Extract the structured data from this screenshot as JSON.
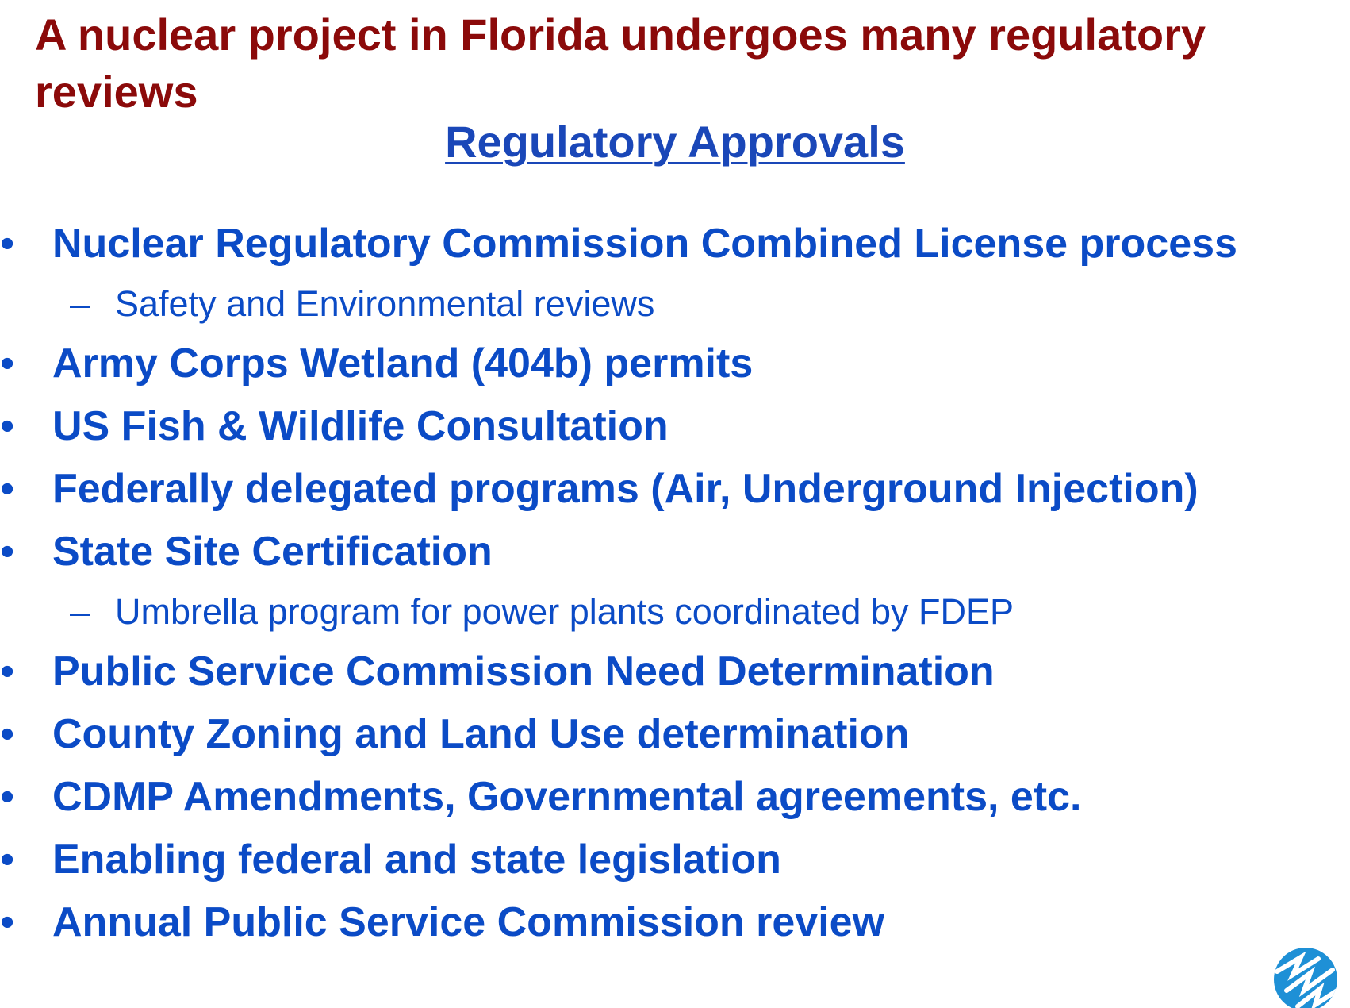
{
  "slide": {
    "title": "A nuclear project in Florida undergoes many regulatory reviews",
    "subtitle": "Regulatory Approvals"
  },
  "bullet_glyph": "•",
  "dash_glyph": "–",
  "items": [
    {
      "text": "Nuclear Regulatory Commission Combined License process"
    },
    {
      "text": "Safety and Environmental reviews"
    },
    {
      "text": "Army Corps Wetland (404b) permits"
    },
    {
      "text": "US Fish & Wildlife Consultation"
    },
    {
      "text": "Federally delegated programs (Air, Underground Injection)"
    },
    {
      "text": "State Site Certification"
    },
    {
      "text": "Umbrella program for power plants coordinated by FDEP"
    },
    {
      "text": "Public Service Commission Need Determination"
    },
    {
      "text": "County Zoning and Land Use determination"
    },
    {
      "text": "CDMP Amendments, Governmental agreements, etc."
    },
    {
      "text": "Enabling federal and state legislation"
    },
    {
      "text": "Annual Public Service Commission review"
    }
  ],
  "logo": {
    "icon": "company-logo-icon",
    "color": "#1e90d6"
  },
  "colors": {
    "title": "#8b0a0a",
    "body": "#0b4bc6"
  }
}
